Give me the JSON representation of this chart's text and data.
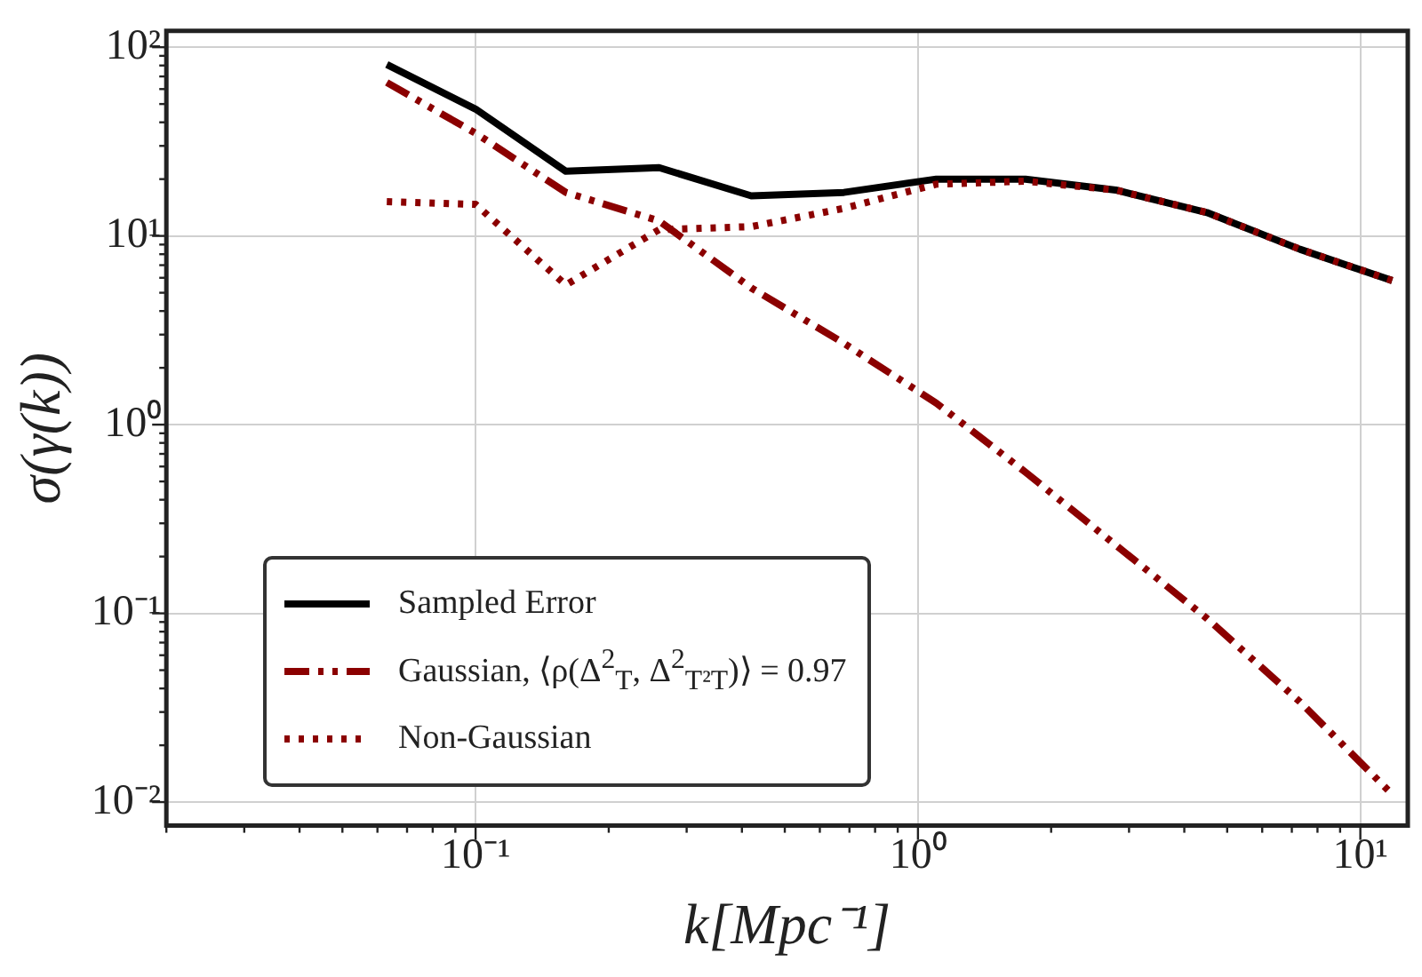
{
  "chart_data": {
    "type": "line",
    "xlabel": "k[Mpc⁻¹]",
    "ylabel": "σ(γ(k))",
    "log": "xy",
    "grid": true,
    "legend": "bottom left",
    "marker": "none",
    "xlim": [
      0.02,
      12.8
    ],
    "ylim": [
      0.0075,
      122
    ],
    "xticks": [
      {
        "value": 0.02,
        "label": null
      },
      {
        "value": 0.03,
        "label": null
      },
      {
        "value": 0.04,
        "label": null
      },
      {
        "value": 0.05,
        "label": null
      },
      {
        "value": 0.06,
        "label": null
      },
      {
        "value": 0.07,
        "label": null
      },
      {
        "value": 0.08,
        "label": null
      },
      {
        "value": 0.09,
        "label": null
      },
      {
        "value": 0.1,
        "label": "10⁻¹"
      },
      {
        "value": 0.2,
        "label": null
      },
      {
        "value": 0.3,
        "label": null
      },
      {
        "value": 0.4,
        "label": null
      },
      {
        "value": 0.5,
        "label": null
      },
      {
        "value": 0.6,
        "label": null
      },
      {
        "value": 0.7,
        "label": null
      },
      {
        "value": 0.8,
        "label": null
      },
      {
        "value": 0.9,
        "label": null
      },
      {
        "value": 1,
        "label": "10⁰"
      },
      {
        "value": 2,
        "label": null
      },
      {
        "value": 3,
        "label": null
      },
      {
        "value": 4,
        "label": null
      },
      {
        "value": 5,
        "label": null
      },
      {
        "value": 6,
        "label": null
      },
      {
        "value": 7,
        "label": null
      },
      {
        "value": 8,
        "label": null
      },
      {
        "value": 9,
        "label": null
      },
      {
        "value": 10,
        "label": "10¹"
      }
    ],
    "yticks": [
      {
        "value": 0.01,
        "label": "10⁻²"
      },
      {
        "value": 0.02,
        "label": null
      },
      {
        "value": 0.03,
        "label": null
      },
      {
        "value": 0.04,
        "label": null
      },
      {
        "value": 0.05,
        "label": null
      },
      {
        "value": 0.06,
        "label": null
      },
      {
        "value": 0.07,
        "label": null
      },
      {
        "value": 0.08,
        "label": null
      },
      {
        "value": 0.09,
        "label": null
      },
      {
        "value": 0.1,
        "label": "10⁻¹"
      },
      {
        "value": 0.2,
        "label": null
      },
      {
        "value": 0.3,
        "label": null
      },
      {
        "value": 0.4,
        "label": null
      },
      {
        "value": 0.5,
        "label": null
      },
      {
        "value": 0.6,
        "label": null
      },
      {
        "value": 0.7,
        "label": null
      },
      {
        "value": 0.8,
        "label": null
      },
      {
        "value": 0.9,
        "label": null
      },
      {
        "value": 1,
        "label": "10⁰"
      },
      {
        "value": 2,
        "label": null
      },
      {
        "value": 3,
        "label": null
      },
      {
        "value": 4,
        "label": null
      },
      {
        "value": 5,
        "label": null
      },
      {
        "value": 6,
        "label": null
      },
      {
        "value": 7,
        "label": null
      },
      {
        "value": 8,
        "label": null
      },
      {
        "value": 9,
        "label": null
      },
      {
        "value": 10,
        "label": "10¹"
      },
      {
        "value": 20,
        "label": null
      },
      {
        "value": 30,
        "label": null
      },
      {
        "value": 40,
        "label": null
      },
      {
        "value": 50,
        "label": null
      },
      {
        "value": 60,
        "label": null
      },
      {
        "value": 70,
        "label": null
      },
      {
        "value": 80,
        "label": null
      },
      {
        "value": 90,
        "label": null
      },
      {
        "value": 100,
        "label": "10²"
      }
    ],
    "x": [
      0.063,
      0.1,
      0.16,
      0.26,
      0.42,
      0.68,
      1.1,
      1.75,
      2.8,
      4.5,
      7.3,
      11.8
    ],
    "series": [
      {
        "name": "Sampled Error",
        "color": "#000000",
        "line_style": "solid",
        "values": [
          81,
          47,
          22,
          23,
          16.3,
          17,
          20,
          20,
          17.5,
          13.3,
          8.5,
          5.8
        ]
      },
      {
        "name": "Gaussian, ⟨ρ(Δ$^{2}$$_{T}$, Δ$^{2}$$_{T²T}$)⟩ = 0.97",
        "color": "#8b0000",
        "line_style": "dashed",
        "values": [
          65,
          35,
          17,
          12,
          5.3,
          2.7,
          1.3,
          0.56,
          0.23,
          0.094,
          0.034,
          0.011
        ]
      },
      {
        "name": "Non-Gaussian",
        "color": "#8b0000",
        "line_style": "dotted",
        "values": [
          15.2,
          14.7,
          5.5,
          10.8,
          11.2,
          14,
          18.8,
          19.5,
          17.5,
          13.3,
          8.5,
          5.8
        ]
      }
    ]
  }
}
